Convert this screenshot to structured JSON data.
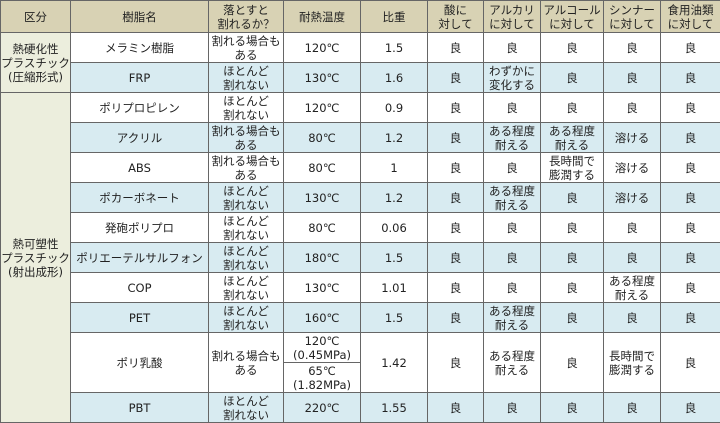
{
  "headers": [
    "区分",
    "樹脂名",
    "落とすと\n割れるか？",
    "耐熱温度",
    "比重",
    "酸に\n対して",
    "アルカリ\nに対して",
    "アルコール\nに対して",
    "シンナー\nに対して",
    "食用油類\nに対して"
  ],
  "groups": [
    {
      "label": "熱硬化性\nプラスチック\n(圧縮形式)",
      "rows": 2
    },
    {
      "label": "熱可塑性\nプラスチック\n(射出成形)",
      "rows": 10
    }
  ],
  "rows": [
    {
      "name": "メラミン樹脂",
      "breaks": "割れる場合も\nある",
      "heat": [
        "120℃"
      ],
      "sg": "1.5",
      "acid": "良",
      "alkali": "良",
      "alcohol": "良",
      "thinner": "良",
      "oil": "良"
    },
    {
      "name": "FRP",
      "breaks": "ほとんど\n割れない",
      "heat": [
        "130℃"
      ],
      "sg": "1.6",
      "acid": "良",
      "alkali": "わずかに\n変化する",
      "alcohol": "良",
      "thinner": "良",
      "oil": "良"
    },
    {
      "name": "ポリプロピレン",
      "breaks": "ほとんど\n割れない",
      "heat": [
        "120℃"
      ],
      "sg": "0.9",
      "acid": "良",
      "alkali": "良",
      "alcohol": "良",
      "thinner": "良",
      "oil": "良"
    },
    {
      "name": "アクリル",
      "breaks": "割れる場合も\nある",
      "heat": [
        "80℃"
      ],
      "sg": "1.2",
      "acid": "良",
      "alkali": "ある程度\n耐える",
      "alcohol": "ある程度\n耐える",
      "thinner": "溶ける",
      "oil": "良"
    },
    {
      "name": "ABS",
      "breaks": "割れる場合も\nある",
      "heat": [
        "80℃"
      ],
      "sg": "1",
      "acid": "良",
      "alkali": "良",
      "alcohol": "長時間で\n膨潤する",
      "thinner": "溶ける",
      "oil": "良"
    },
    {
      "name": "ポカーボネート",
      "breaks": "ほとんど\n割れない",
      "heat": [
        "130℃"
      ],
      "sg": "1.2",
      "acid": "良",
      "alkali": "ある程度\n耐える",
      "alcohol": "良",
      "thinner": "溶ける",
      "oil": "良"
    },
    {
      "name": "発砲ポリプロ",
      "breaks": "ほとんど\n割れない",
      "heat": [
        "80℃"
      ],
      "sg": "0.06",
      "acid": "良",
      "alkali": "良",
      "alcohol": "良",
      "thinner": "良",
      "oil": "良"
    },
    {
      "name": "ポリエーテルサルフォン",
      "breaks": "ほとんど\n割れない",
      "heat": [
        "180℃"
      ],
      "sg": "1.5",
      "acid": "良",
      "alkali": "良",
      "alcohol": "良",
      "thinner": "良",
      "oil": "良"
    },
    {
      "name": "COP",
      "breaks": "ほとんど\n割れない",
      "heat": [
        "130℃"
      ],
      "sg": "1.01",
      "acid": "良",
      "alkali": "良",
      "alcohol": "良",
      "thinner": "ある程度\n耐える",
      "oil": "良"
    },
    {
      "name": "PET",
      "breaks": "ほとんど\n割れない",
      "heat": [
        "160℃"
      ],
      "sg": "1.5",
      "acid": "良",
      "alkali": "ある程度\n耐える",
      "alcohol": "良",
      "thinner": "良",
      "oil": "良"
    },
    {
      "name": "ポリ乳酸",
      "breaks": "割れる場合も\nある",
      "heat": [
        "120℃\n(0.45MPa)",
        "65℃\n(1.82MPa)"
      ],
      "sg": "1.42",
      "acid": "良",
      "alkali": "ある程度\n耐える",
      "alcohol": "良",
      "thinner": "長時間で\n膨潤する",
      "oil": "良"
    },
    {
      "name": "PBT",
      "breaks": "ほとんど\n割れない",
      "heat": [
        "220℃"
      ],
      "sg": "1.55",
      "acid": "良",
      "alkali": "良",
      "alcohol": "良",
      "thinner": "良",
      "oil": "良"
    }
  ],
  "colors": {
    "header_bg": "#d8d2b4",
    "group_bg": "#eceedd",
    "alt_row_bg": "#d8ebf1",
    "border": "#666666"
  }
}
